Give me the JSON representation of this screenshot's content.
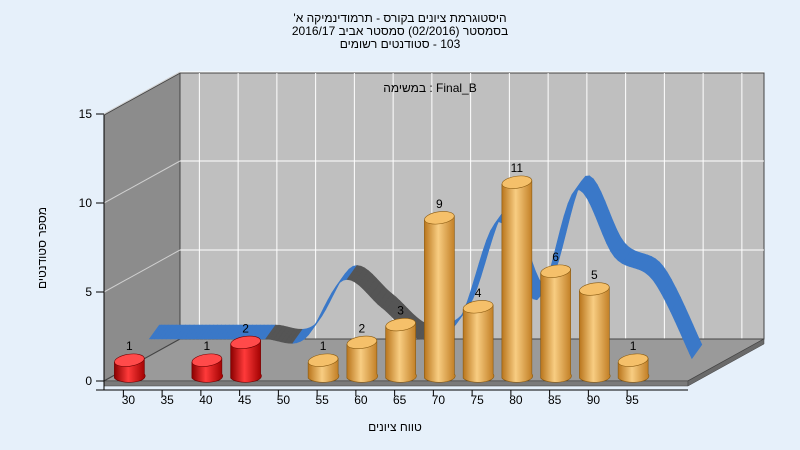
{
  "chart_data": {
    "type": "bar",
    "title_lines": [
      "היסטוגרמת ציונים בקורס - תרמודינמיקה א'",
      "בסמסטר  (02/2016)  סמסטר אביב 2016/17",
      "103 - סטודנטים רשומים"
    ],
    "annotation": "Final_B : במשימה",
    "xlabel": "טווח ציונים",
    "ylabel": "מספר סטודנטים",
    "x_ticks": [
      "30",
      "35",
      "40",
      "45",
      "50",
      "55",
      "60",
      "65",
      "70",
      "75",
      "80",
      "85",
      "90",
      "95"
    ],
    "y_ticks": [
      "0",
      "5",
      "10",
      "15"
    ],
    "ylim": [
      0,
      15
    ],
    "grid": true,
    "bars": [
      {
        "x": 30,
        "value": 1,
        "label": "1",
        "color": "red"
      },
      {
        "x": 40,
        "value": 1,
        "label": "1",
        "color": "red"
      },
      {
        "x": 45,
        "value": 2,
        "label": "2",
        "color": "red"
      },
      {
        "x": 55,
        "value": 1,
        "label": "1",
        "color": "orange"
      },
      {
        "x": 60,
        "value": 2,
        "label": "2",
        "color": "orange"
      },
      {
        "x": 65,
        "value": 3,
        "label": "3",
        "color": "orange"
      },
      {
        "x": 70,
        "value": 9,
        "label": "9",
        "color": "orange"
      },
      {
        "x": 75,
        "value": 4,
        "label": "4",
        "color": "orange"
      },
      {
        "x": 80,
        "value": 11,
        "label": "11",
        "color": "orange"
      },
      {
        "x": 85,
        "value": 6,
        "label": "6",
        "color": "orange"
      },
      {
        "x": 90,
        "value": 5,
        "label": "5",
        "color": "orange"
      },
      {
        "x": 95,
        "value": 1,
        "label": "1",
        "color": "orange"
      }
    ],
    "trend": {
      "x": [
        30,
        35,
        40,
        45,
        50,
        55,
        60,
        65,
        70,
        75,
        80,
        85,
        90,
        95,
        100
      ],
      "y": [
        0,
        0,
        0,
        0,
        0,
        1.5,
        0.8,
        0,
        0.5,
        3,
        1,
        3.8,
        2.1,
        1.5,
        -0.5
      ]
    },
    "colors": {
      "background": "#e6f0fa",
      "plot_wall": "#bfbfbf",
      "side_wall": "#8c8c8c",
      "floor": "#9a9a9a",
      "grid": "#ffffff",
      "bar_red": "#e02020",
      "bar_orange": "#e8a640",
      "trend_blue": "#3a78c8",
      "trend_dark": "#555555"
    }
  }
}
